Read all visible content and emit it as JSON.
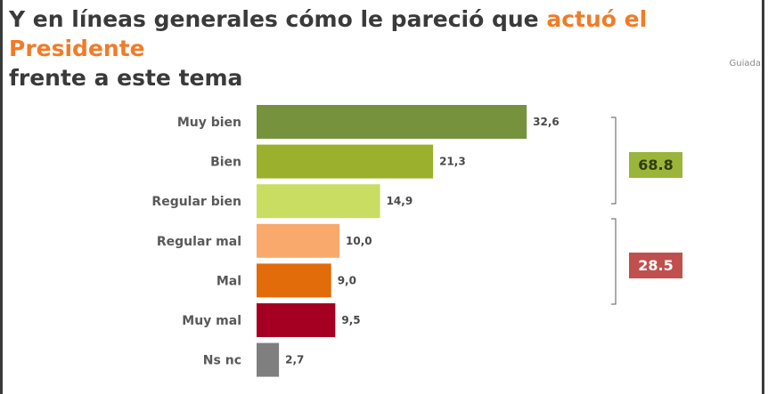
{
  "header": {
    "title_part1": "Y en líneas generales cómo le pareció que ",
    "title_highlight": "actuó el Presidente",
    "title_part2": "frente a este tema",
    "subtitle": "Guiada"
  },
  "colors": {
    "highlight": "#f07c28",
    "positive_box": "#9bb53a",
    "negative_box": "#c0504d"
  },
  "summary": {
    "positive_total": "68.8",
    "negative_total": "28.5"
  },
  "chart_data": {
    "type": "bar",
    "orientation": "horizontal",
    "categories": [
      "Muy bien",
      "Bien",
      "Regular bien",
      "Regular mal",
      "Mal",
      "Muy mal",
      "Ns nc"
    ],
    "values": [
      32.6,
      21.3,
      14.9,
      10.0,
      9.0,
      9.5,
      2.7
    ],
    "value_labels": [
      "32,6",
      "21,3",
      "14,9",
      "10,0",
      "9,0",
      "9,5",
      "2,7"
    ],
    "bar_colors": [
      "#76923c",
      "#9bb02c",
      "#c9dd63",
      "#f9a96b",
      "#e26b0a",
      "#a50021",
      "#7f7f7f"
    ],
    "xlim": [
      0,
      35
    ],
    "grid": false,
    "legend": "none"
  }
}
